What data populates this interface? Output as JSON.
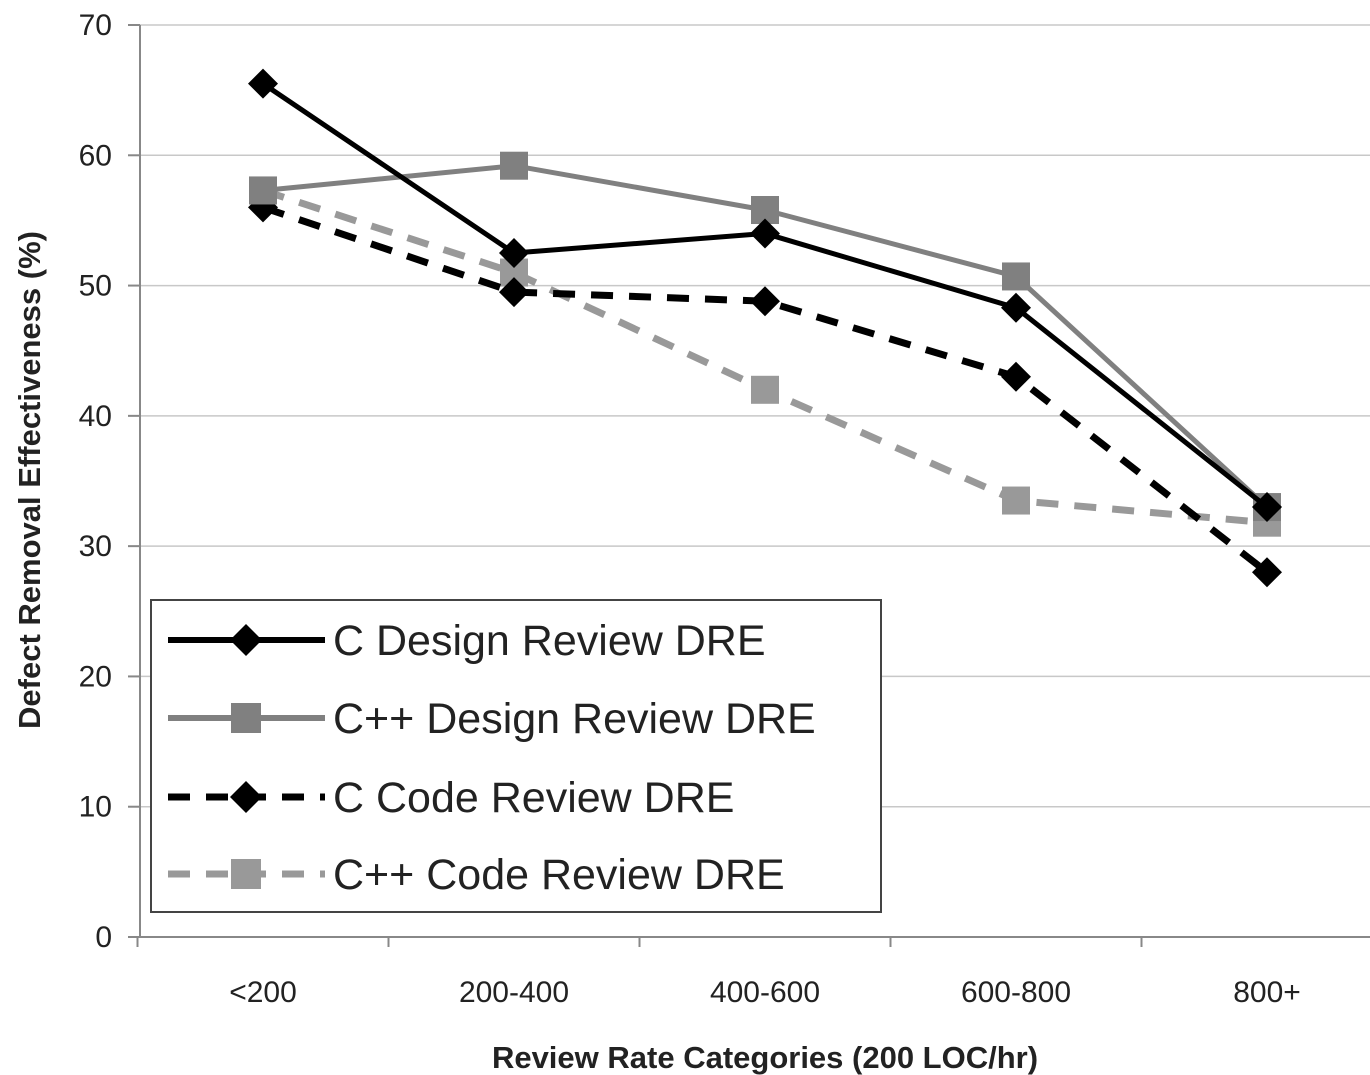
{
  "chart_data": {
    "type": "line",
    "title": "",
    "xlabel": "Review Rate Categories (200 LOC/hr)",
    "ylabel": "Defect Removal Effectiveness (%)",
    "ylim": [
      0,
      70
    ],
    "yticks": [
      "0",
      "10",
      "20",
      "30",
      "40",
      "50",
      "60",
      "70"
    ],
    "grid": "horizontal",
    "legend_position": "bottom-left",
    "categories": [
      "<200",
      "200-400",
      "400-600",
      "600-800",
      "800+"
    ],
    "series": [
      {
        "name": "C Design Review DRE",
        "values": [
          65.5,
          52.5,
          54.0,
          48.3,
          33.0
        ],
        "color": "#000000",
        "dash": "solid",
        "marker": "diamond"
      },
      {
        "name": "C++ Design Review DRE",
        "values": [
          57.3,
          59.2,
          55.8,
          50.7,
          33.0
        ],
        "color": "#808080",
        "dash": "solid",
        "marker": "square"
      },
      {
        "name": "C Code Review DRE",
        "values": [
          56.0,
          49.5,
          48.8,
          43.0,
          28.0
        ],
        "color": "#000000",
        "dash": "dashed",
        "marker": "diamond"
      },
      {
        "name": "C++ Code Review DRE",
        "values": [
          57.3,
          51.0,
          42.0,
          33.5,
          31.8
        ],
        "color": "#999999",
        "dash": "dashed",
        "marker": "square"
      }
    ]
  }
}
